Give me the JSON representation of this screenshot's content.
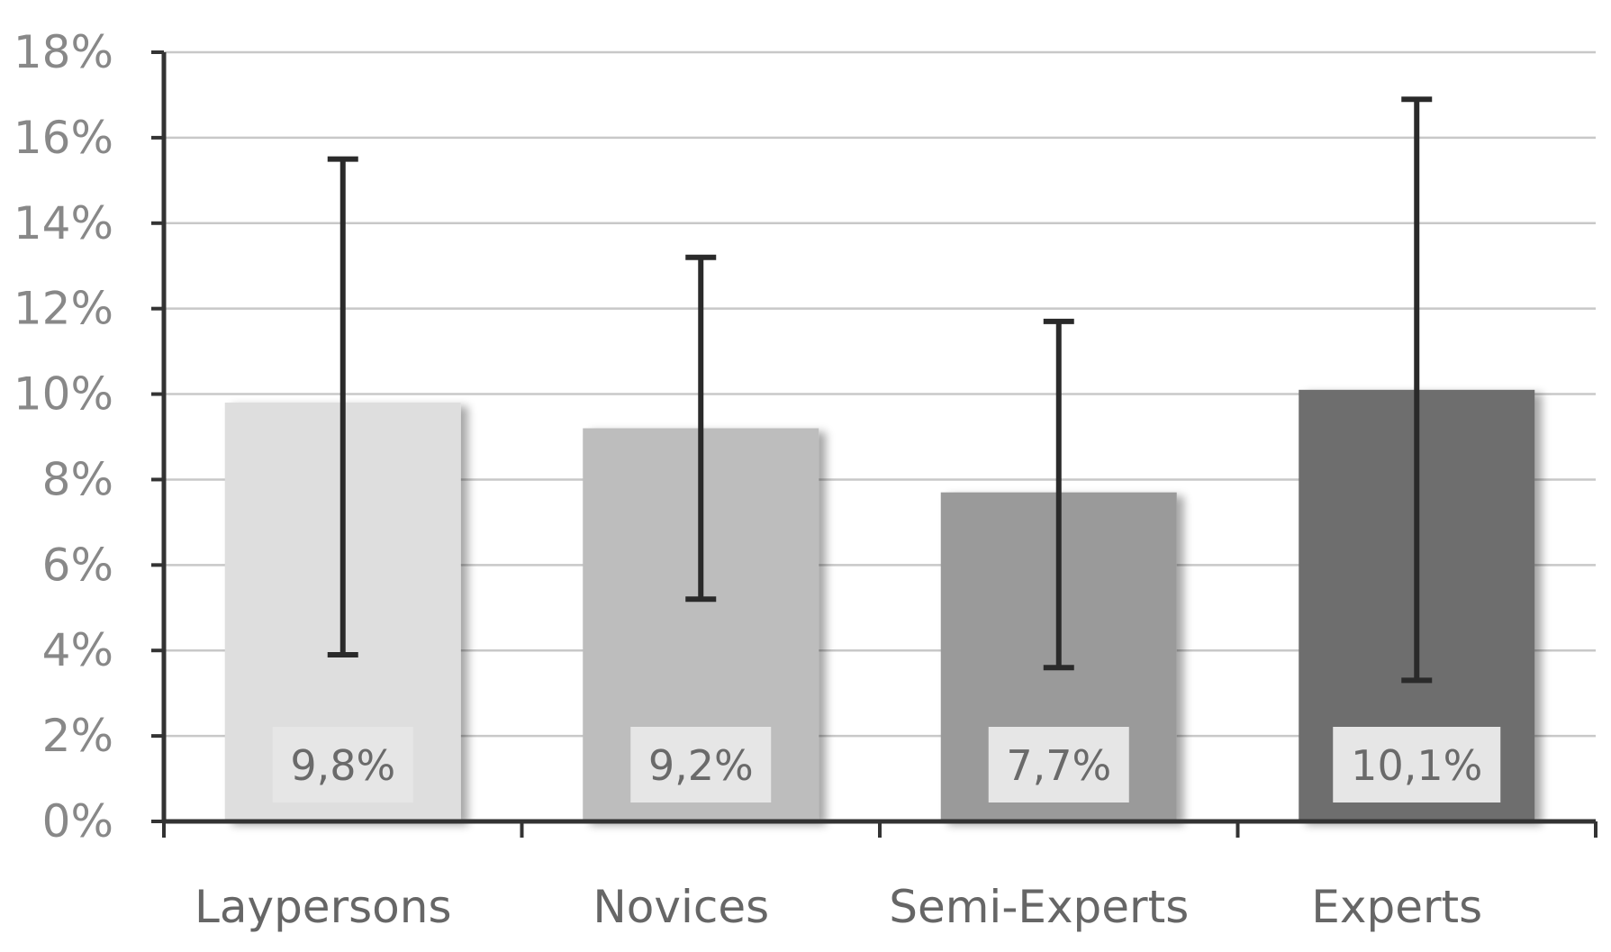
{
  "chart_data": {
    "type": "bar",
    "title": "",
    "xlabel": "",
    "ylabel": "",
    "categories": [
      "Laypersons",
      "Novices",
      "Semi-Experts",
      "Experts"
    ],
    "values": [
      9.8,
      9.2,
      7.7,
      10.1
    ],
    "value_labels": [
      "9,8%",
      "9,2%",
      "7,7%",
      "10,1%"
    ],
    "error_bars": [
      {
        "low": 3.9,
        "high": 15.5
      },
      {
        "low": 5.2,
        "high": 13.2
      },
      {
        "low": 3.6,
        "high": 11.7
      },
      {
        "low": 3.3,
        "high": 16.9
      }
    ],
    "ylim": [
      0,
      18
    ],
    "yticks": [
      0,
      2,
      4,
      6,
      8,
      10,
      12,
      14,
      16,
      18
    ],
    "ytick_labels": [
      "0%",
      "2%",
      "4%",
      "6%",
      "8%",
      "10%",
      "12%",
      "14%",
      "16%",
      "18%"
    ],
    "grid": true,
    "legend": "none",
    "colors": {
      "bars": [
        "#dedede",
        "#bdbdbd",
        "#9a9a9a",
        "#6e6e6e"
      ],
      "label_box": "#e6e6e6",
      "grid": "#c8c8c8",
      "axis": "#333333",
      "error_bar": "#2a2a2a"
    }
  }
}
